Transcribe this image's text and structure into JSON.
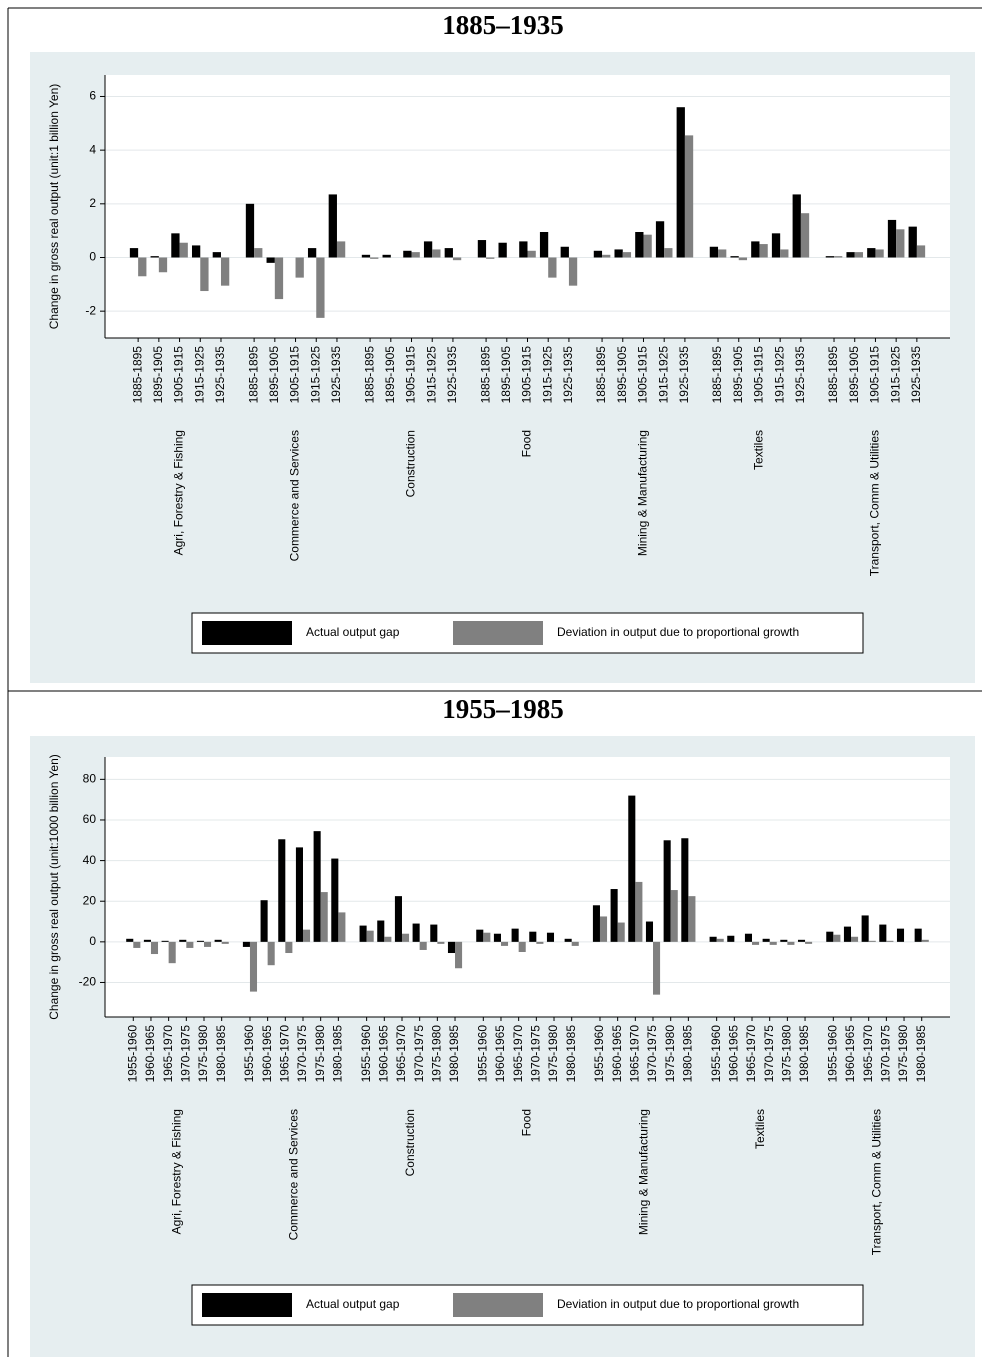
{
  "chart_data": [
    {
      "type": "bar",
      "title": "1885–1935",
      "y_label": "Change in gross real output (unit:1 billion Yen)",
      "categories": [
        "1885-1895",
        "1895-1905",
        "1905-1915",
        "1915-1925",
        "1925-1935",
        "1885-1895",
        "1895-1905",
        "1905-1915",
        "1915-1925",
        "1925-1935",
        "1885-1895",
        "1895-1905",
        "1905-1915",
        "1915-1925",
        "1925-1935",
        "1885-1895",
        "1895-1905",
        "1905-1915",
        "1915-1925",
        "1925-1935",
        "1885-1895",
        "1895-1905",
        "1905-1915",
        "1915-1925",
        "1925-1935",
        "1885-1895",
        "1895-1905",
        "1905-1915",
        "1915-1925",
        "1925-1935",
        "1885-1895",
        "1895-1905",
        "1905-1915",
        "1915-1925",
        "1925-1935"
      ],
      "groups": [
        "Agri, Forestry & Fishing",
        "Commerce and Services",
        "Construction",
        "Food",
        "Mining & Manufacturing",
        "Textiles",
        "Transport, Comm & Utilities"
      ],
      "series": [
        {
          "name": "Actual output gap",
          "color": "#000000",
          "values": [
            0.35,
            0.05,
            0.9,
            0.45,
            0.2,
            2.0,
            -0.2,
            0.0,
            0.35,
            2.35,
            0.1,
            0.1,
            0.25,
            0.6,
            0.35,
            0.65,
            0.55,
            0.6,
            0.95,
            0.4,
            0.25,
            0.3,
            0.95,
            1.35,
            5.6,
            0.4,
            0.05,
            0.6,
            0.9,
            2.35,
            0.05,
            0.2,
            0.35,
            1.4,
            1.15
          ]
        },
        {
          "name": "Deviation in output due to proportional growth",
          "color": "#808080",
          "values": [
            -0.7,
            -0.55,
            0.55,
            -1.25,
            -1.05,
            0.35,
            -1.55,
            -0.75,
            -2.25,
            0.6,
            -0.05,
            0.0,
            0.2,
            0.3,
            -0.1,
            -0.05,
            0.0,
            0.25,
            -0.75,
            -1.05,
            0.1,
            0.2,
            0.85,
            0.35,
            4.55,
            0.3,
            -0.1,
            0.5,
            0.3,
            1.65,
            0.05,
            0.2,
            0.3,
            1.05,
            0.45
          ]
        }
      ],
      "ylim": [
        -3,
        6.8
      ],
      "yticks": [
        -2,
        0,
        2,
        4,
        6
      ],
      "grid": true
    },
    {
      "type": "bar",
      "title": "1955–1985",
      "y_label": "Change in gross real output (unit:1000 billion Yen)",
      "categories": [
        "1955-1960",
        "1960-1965",
        "1965-1970",
        "1970-1975",
        "1975-1980",
        "1980-1985",
        "1955-1960",
        "1960-1965",
        "1965-1970",
        "1970-1975",
        "1975-1980",
        "1980-1985",
        "1955-1960",
        "1960-1965",
        "1965-1970",
        "1970-1975",
        "1975-1980",
        "1980-1985",
        "1955-1960",
        "1960-1965",
        "1965-1970",
        "1970-1975",
        "1975-1980",
        "1980-1985",
        "1955-1960",
        "1960-1965",
        "1965-1970",
        "1970-1975",
        "1975-1980",
        "1980-1985",
        "1955-1960",
        "1960-1965",
        "1965-1970",
        "1970-1975",
        "1975-1980",
        "1980-1985",
        "1955-1960",
        "1960-1965",
        "1965-1970",
        "1970-1975",
        "1975-1980",
        "1980-1985"
      ],
      "groups": [
        "Agri, Forestry & Fishing",
        "Commerce and Services",
        "Construction",
        "Food",
        "Mining & Manufacturing",
        "Textiles",
        "Transport, Comm & Utilities"
      ],
      "series": [
        {
          "name": "Actual output gap",
          "color": "#000000",
          "values": [
            1.5,
            1,
            0.5,
            1,
            0.5,
            1,
            -2.5,
            20.5,
            50.5,
            46.5,
            54.5,
            41,
            8,
            10.5,
            22.5,
            9,
            8.5,
            -5.5,
            6,
            4,
            6.5,
            5,
            4.5,
            1.5,
            18,
            26,
            72,
            10,
            50,
            51,
            2.5,
            3,
            4,
            1.5,
            1,
            1,
            5,
            7.5,
            13,
            8.5,
            6.5,
            6.5
          ]
        },
        {
          "name": "Deviation in output due to proportional growth",
          "color": "#808080",
          "values": [
            -3,
            -6,
            -10.5,
            -3,
            -2.5,
            -1,
            -24.5,
            -11.5,
            -5.5,
            6,
            24.5,
            14.5,
            5.5,
            2.5,
            4,
            -4,
            -1,
            -13,
            4.5,
            -2,
            -5,
            -1,
            0,
            -2,
            12.5,
            9.5,
            29.5,
            -26,
            25.5,
            22.5,
            1.5,
            0,
            -1.5,
            -1.5,
            -1.5,
            -1,
            3.5,
            2.5,
            0.5,
            0.5,
            0,
            1
          ]
        }
      ],
      "ylim": [
        -37,
        91
      ],
      "yticks": [
        -20,
        0,
        20,
        40,
        60,
        80
      ],
      "grid": true
    }
  ]
}
